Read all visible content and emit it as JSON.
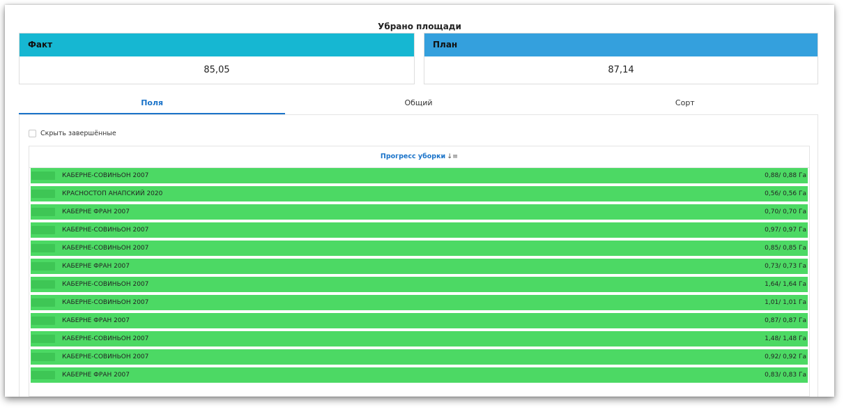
{
  "title": "Убрано площади",
  "fact": {
    "label": "Факт",
    "value": "85,05"
  },
  "plan": {
    "label": "План",
    "value": "87,14"
  },
  "tabs": [
    {
      "label": "Поля",
      "active": true
    },
    {
      "label": "Общий",
      "active": false
    },
    {
      "label": "Сорт",
      "active": false
    }
  ],
  "hide_completed": {
    "label": "Скрыть завершённые",
    "checked": false
  },
  "table": {
    "header": "Прогресс уборки",
    "sort_icon": "sort-descending-icon",
    "rows": [
      {
        "name": "КАБЕРНЕ-СОВИНЬОН 2007",
        "value": "0,88/ 0,88 Га",
        "progress": 1.0
      },
      {
        "name": "КРАСНОСТОП АНАПСКИЙ 2020",
        "value": "0,56/ 0,56 Га",
        "progress": 1.0
      },
      {
        "name": "КАБЕРНЕ ФРАН 2007",
        "value": "0,70/ 0,70 Га",
        "progress": 1.0
      },
      {
        "name": "КАБЕРНЕ-СОВИНЬОН 2007",
        "value": "0,97/ 0,97 Га",
        "progress": 1.0
      },
      {
        "name": "КАБЕРНЕ-СОВИНЬОН 2007",
        "value": "0,85/ 0,85 Га",
        "progress": 1.0
      },
      {
        "name": "КАБЕРНЕ ФРАН 2007",
        "value": "0,73/ 0,73 Га",
        "progress": 1.0
      },
      {
        "name": "КАБЕРНЕ-СОВИНЬОН 2007",
        "value": "1,64/ 1,64 Га",
        "progress": 1.0
      },
      {
        "name": "КАБЕРНЕ-СОВИНЬОН 2007",
        "value": "1,01/ 1,01 Га",
        "progress": 1.0
      },
      {
        "name": "КАБЕРНЕ ФРАН 2007",
        "value": "0,87/ 0,87 Га",
        "progress": 1.0
      },
      {
        "name": "КАБЕРНЕ-СОВИНЬОН 2007",
        "value": "1,48/ 1,48 Га",
        "progress": 1.0
      },
      {
        "name": "КАБЕРНЕ-СОВИНЬОН 2007",
        "value": "0,92/ 0,92 Га",
        "progress": 1.0
      },
      {
        "name": "КАБЕРНЕ ФРАН 2007",
        "value": "0,83/ 0,83 Га",
        "progress": 1.0
      }
    ]
  },
  "colors": {
    "fact_header": "#16b7d2",
    "plan_header": "#34a0dd",
    "progress_fill": "#4cd964",
    "accent": "#1a73c9"
  }
}
